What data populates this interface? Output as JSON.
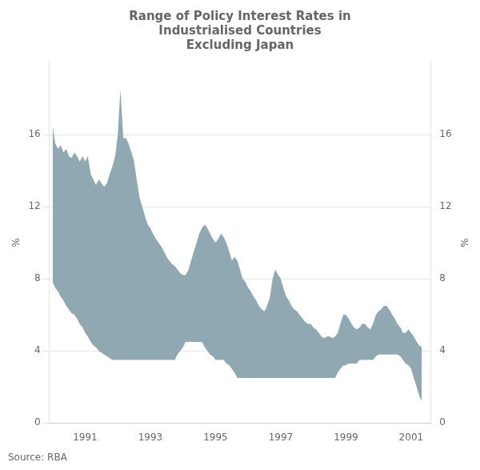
{
  "chart_data": {
    "type": "area",
    "title": [
      "Range of Policy Interest Rates in",
      "Industrialised Countries",
      "Excluding Japan"
    ],
    "source": "Source: RBA",
    "ylabel": "%",
    "y2label": "%",
    "color": "#8fa8b2",
    "grid": true,
    "xlim": [
      1989.9,
      2001.6
    ],
    "xticks": [
      1991,
      1993,
      1995,
      1997,
      1999,
      2001
    ],
    "ylim": [
      0,
      20
    ],
    "yticks": [
      0,
      4,
      8,
      12,
      16
    ],
    "y2lim": [
      0,
      20
    ],
    "y2ticks": [
      0,
      4,
      8,
      12,
      16
    ],
    "x": [
      1990.0,
      1990.08,
      1990.17,
      1990.25,
      1990.33,
      1990.42,
      1990.5,
      1990.58,
      1990.67,
      1990.75,
      1990.83,
      1990.92,
      1991.0,
      1991.08,
      1991.17,
      1991.25,
      1991.33,
      1991.42,
      1991.5,
      1991.58,
      1991.67,
      1991.75,
      1991.83,
      1991.92,
      1992.0,
      1992.08,
      1992.17,
      1992.25,
      1992.33,
      1992.42,
      1992.5,
      1992.58,
      1992.67,
      1992.75,
      1992.83,
      1992.92,
      1993.0,
      1993.08,
      1993.17,
      1993.25,
      1993.33,
      1993.42,
      1993.5,
      1993.58,
      1993.67,
      1993.75,
      1993.83,
      1993.92,
      1994.0,
      1994.08,
      1994.17,
      1994.25,
      1994.33,
      1994.42,
      1994.5,
      1994.58,
      1994.67,
      1994.75,
      1994.83,
      1994.92,
      1995.0,
      1995.08,
      1995.17,
      1995.25,
      1995.33,
      1995.42,
      1995.5,
      1995.58,
      1995.67,
      1995.75,
      1995.83,
      1995.92,
      1996.0,
      1996.08,
      1996.17,
      1996.25,
      1996.33,
      1996.42,
      1996.5,
      1996.58,
      1996.67,
      1996.75,
      1996.83,
      1996.92,
      1997.0,
      1997.08,
      1997.17,
      1997.25,
      1997.33,
      1997.42,
      1997.5,
      1997.58,
      1997.67,
      1997.75,
      1997.83,
      1997.92,
      1998.0,
      1998.08,
      1998.17,
      1998.25,
      1998.33,
      1998.42,
      1998.5,
      1998.58,
      1998.67,
      1998.75,
      1998.83,
      1998.92,
      1999.0,
      1999.08,
      1999.17,
      1999.25,
      1999.33,
      1999.42,
      1999.5,
      1999.58,
      1999.67,
      1999.75,
      1999.83,
      1999.92,
      2000.0,
      2000.08,
      2000.17,
      2000.25,
      2000.33,
      2000.42,
      2000.5,
      2000.58,
      2000.67,
      2000.75,
      2000.83,
      2000.92,
      2001.0,
      2001.08,
      2001.17,
      2001.25,
      2001.33
    ],
    "upper": [
      16.5,
      15.5,
      15.2,
      15.4,
      15.0,
      15.2,
      14.8,
      14.7,
      15.0,
      14.8,
      14.5,
      14.8,
      14.5,
      14.8,
      13.8,
      13.5,
      13.2,
      13.5,
      13.3,
      13.1,
      13.3,
      13.8,
      14.2,
      14.8,
      16.0,
      18.5,
      15.8,
      15.8,
      15.5,
      15.0,
      14.5,
      13.5,
      12.5,
      12.0,
      11.5,
      11.0,
      10.8,
      10.5,
      10.2,
      10.0,
      9.8,
      9.5,
      9.2,
      9.0,
      8.8,
      8.7,
      8.5,
      8.3,
      8.2,
      8.2,
      8.5,
      9.0,
      9.5,
      10.0,
      10.5,
      10.8,
      11.0,
      10.8,
      10.5,
      10.2,
      10.0,
      10.2,
      10.5,
      10.3,
      10.0,
      9.5,
      9.0,
      9.2,
      9.0,
      8.5,
      8.0,
      7.8,
      7.5,
      7.3,
      7.0,
      6.8,
      6.5,
      6.3,
      6.2,
      6.5,
      7.0,
      8.0,
      8.5,
      8.2,
      8.0,
      7.5,
      7.0,
      6.8,
      6.5,
      6.3,
      6.2,
      6.0,
      5.8,
      5.6,
      5.5,
      5.5,
      5.3,
      5.2,
      5.0,
      4.8,
      4.7,
      4.8,
      4.8,
      4.7,
      4.8,
      5.0,
      5.5,
      6.0,
      6.0,
      5.8,
      5.5,
      5.3,
      5.2,
      5.3,
      5.5,
      5.5,
      5.3,
      5.2,
      5.5,
      6.0,
      6.2,
      6.3,
      6.5,
      6.5,
      6.3,
      6.0,
      5.8,
      5.5,
      5.3,
      5.0,
      5.0,
      5.2,
      5.0,
      4.8,
      4.5,
      4.3,
      4.2
    ],
    "lower": [
      7.8,
      7.5,
      7.3,
      7.0,
      6.8,
      6.5,
      6.3,
      6.1,
      6.0,
      5.8,
      5.5,
      5.3,
      5.0,
      4.8,
      4.5,
      4.3,
      4.2,
      4.0,
      3.9,
      3.8,
      3.7,
      3.6,
      3.5,
      3.5,
      3.5,
      3.5,
      3.5,
      3.5,
      3.5,
      3.5,
      3.5,
      3.5,
      3.5,
      3.5,
      3.5,
      3.5,
      3.5,
      3.5,
      3.5,
      3.5,
      3.5,
      3.5,
      3.5,
      3.5,
      3.5,
      3.5,
      3.8,
      4.0,
      4.2,
      4.5,
      4.5,
      4.5,
      4.5,
      4.5,
      4.5,
      4.5,
      4.2,
      4.0,
      3.8,
      3.7,
      3.5,
      3.5,
      3.5,
      3.5,
      3.3,
      3.2,
      3.0,
      2.8,
      2.5,
      2.5,
      2.5,
      2.5,
      2.5,
      2.5,
      2.5,
      2.5,
      2.5,
      2.5,
      2.5,
      2.5,
      2.5,
      2.5,
      2.5,
      2.5,
      2.5,
      2.5,
      2.5,
      2.5,
      2.5,
      2.5,
      2.5,
      2.5,
      2.5,
      2.5,
      2.5,
      2.5,
      2.5,
      2.5,
      2.5,
      2.5,
      2.5,
      2.5,
      2.5,
      2.5,
      2.5,
      2.8,
      3.0,
      3.2,
      3.2,
      3.3,
      3.3,
      3.3,
      3.3,
      3.5,
      3.5,
      3.5,
      3.5,
      3.5,
      3.5,
      3.7,
      3.8,
      3.8,
      3.8,
      3.8,
      3.8,
      3.8,
      3.8,
      3.8,
      3.7,
      3.5,
      3.3,
      3.2,
      3.0,
      2.5,
      2.0,
      1.5,
      1.2
    ]
  }
}
